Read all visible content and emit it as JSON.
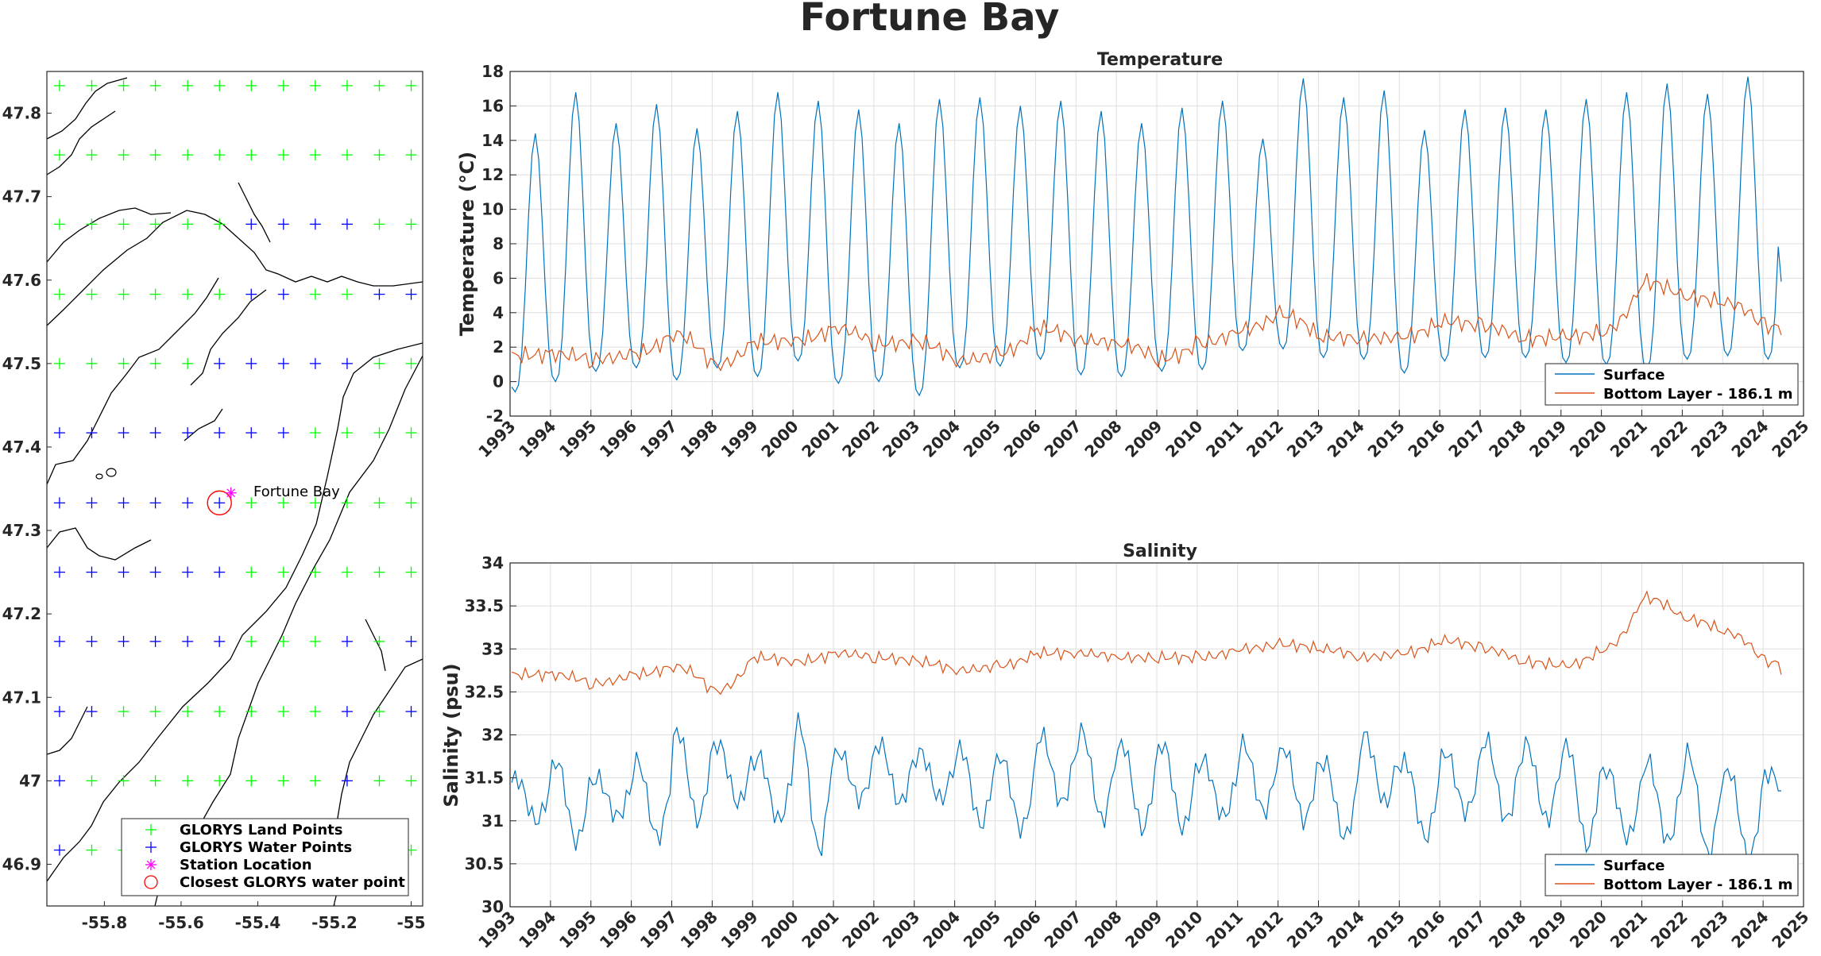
{
  "figure_title": "Fortune Bay",
  "colors": {
    "surface": "#0072BD",
    "bottom": "#D95319",
    "land_points": "#00FF00",
    "water_points": "#0000FF",
    "station": "#FF00FF",
    "closest": "#FF0000",
    "coast": "#000000"
  },
  "map": {
    "station_label": "Fortune Bay",
    "x_ticks": [
      "-55.8",
      "-55.6",
      "-55.4",
      "-55.2",
      "-55"
    ],
    "y_ticks": [
      "47.8",
      "47.7",
      "47.6",
      "47.5",
      "47.4",
      "47.3",
      "47.2",
      "47.1",
      "47",
      "46.9"
    ],
    "legend": [
      "GLORYS Land Points",
      "GLORYS Water Points",
      "Station Location",
      "Closest GLORYS water point"
    ],
    "xlim": [
      -55.95,
      -54.97
    ],
    "ylim": [
      46.85,
      47.85
    ],
    "grid_lon": [
      -55.917,
      -55.833,
      -55.75,
      -55.667,
      -55.583,
      -55.5,
      -55.417,
      -55.333,
      -55.25,
      -55.167,
      -55.083,
      -55.0
    ],
    "grid_lat": [
      47.833,
      47.75,
      47.667,
      47.583,
      47.5,
      47.417,
      47.333,
      47.25,
      47.167,
      47.083,
      47.0,
      46.917
    ],
    "water_mask": [
      "LLLLLLLLLLLL",
      "LLLLLLLLLLLL",
      "LLLLLLWWWWLL",
      "LLLLLLWWLLWW",
      "LLLLLWWWWWLL",
      "WWWWWWWWLLLL",
      "WWWWWWLLLLLL",
      "WWWWWWLLLLLL",
      "WWWWWWLLLWLW",
      "WWLLLLLLLWLW",
      "WLLLLLLLLWLL",
      "WLLLLLLLLLWL"
    ],
    "station": {
      "lon": -55.47,
      "lat": 47.345
    },
    "closest": {
      "lon": -55.5,
      "lat": 47.333
    }
  },
  "chart_data": [
    {
      "type": "line",
      "title": "Temperature",
      "xlabel": "",
      "ylabel": "Temperature (°C)",
      "xlim": [
        1993,
        2025
      ],
      "ylim": [
        -2,
        18
      ],
      "x_ticks": [
        "1993",
        "1994",
        "1995",
        "1996",
        "1997",
        "1998",
        "1999",
        "2000",
        "2001",
        "2002",
        "2003",
        "2004",
        "2005",
        "2006",
        "2007",
        "2008",
        "2009",
        "2010",
        "2011",
        "2012",
        "2013",
        "2014",
        "2015",
        "2016",
        "2017",
        "2018",
        "2019",
        "2020",
        "2021",
        "2022",
        "2023",
        "2024",
        "2025"
      ],
      "y_ticks": [
        "-2",
        "0",
        "2",
        "4",
        "6",
        "8",
        "10",
        "12",
        "14",
        "16",
        "18"
      ],
      "legend": "bottom-right",
      "series": [
        {
          "name": "Surface",
          "peaks": [
            14.4,
            16.8,
            15.0,
            16.1,
            14.7,
            15.7,
            16.8,
            16.3,
            15.8,
            15.0,
            16.4,
            16.5,
            16.0,
            16.3,
            15.7,
            15.0,
            15.9,
            16.3,
            14.1,
            17.6,
            16.5,
            16.9,
            14.6,
            15.8,
            15.9,
            15.8,
            16.4,
            16.8,
            17.3,
            16.7,
            17.7,
            17.8
          ],
          "troughs": [
            -0.6,
            0.0,
            0.6,
            0.8,
            0.1,
            0.8,
            0.3,
            1.2,
            -0.1,
            0.0,
            -0.8,
            0.8,
            0.9,
            1.3,
            0.4,
            0.3,
            0.6,
            0.7,
            1.8,
            1.9,
            1.4,
            1.3,
            0.5,
            1.2,
            1.4,
            1.4,
            1.1,
            1.0,
            0.8,
            1.3,
            1.5,
            1.3
          ],
          "end": 5.8
        },
        {
          "name": "Bottom Layer - 186.1 m",
          "annual_mean": [
            1.5,
            1.6,
            1.3,
            1.6,
            2.8,
            0.9,
            2.3,
            2.4,
            3.1,
            2.2,
            2.3,
            1.2,
            1.6,
            3.1,
            2.4,
            2.2,
            1.3,
            2.2,
            3.0,
            3.9,
            2.6,
            2.5,
            2.6,
            3.5,
            3.2,
            2.5,
            2.6,
            2.9,
            5.8,
            4.9,
            4.6,
            3.2
          ],
          "end": 2.7
        }
      ]
    },
    {
      "type": "line",
      "title": "Salinity",
      "xlabel": "",
      "ylabel": "Salinity (psu)",
      "xlim": [
        1993,
        2025
      ],
      "ylim": [
        30,
        34
      ],
      "x_ticks": [
        "1993",
        "1994",
        "1995",
        "1996",
        "1997",
        "1998",
        "1999",
        "2000",
        "2001",
        "2002",
        "2003",
        "2004",
        "2005",
        "2006",
        "2007",
        "2008",
        "2009",
        "2010",
        "2011",
        "2012",
        "2013",
        "2014",
        "2015",
        "2016",
        "2017",
        "2018",
        "2019",
        "2020",
        "2021",
        "2022",
        "2023",
        "2024",
        "2025"
      ],
      "y_ticks": [
        "30",
        "30.5",
        "31",
        "31.5",
        "32",
        "32.5",
        "33",
        "33.5",
        "34"
      ],
      "legend": "bottom-right",
      "series": [
        {
          "name": "Surface",
          "peaks": [
            31.5,
            31.7,
            31.5,
            31.7,
            32.05,
            31.9,
            31.75,
            32.15,
            31.8,
            31.9,
            31.8,
            31.85,
            31.75,
            32.0,
            32.05,
            31.9,
            31.9,
            31.7,
            31.9,
            31.85,
            31.7,
            32.0,
            31.7,
            31.8,
            31.95,
            31.9,
            31.9,
            31.6,
            31.7,
            31.8,
            31.6,
            31.55
          ],
          "troughs": [
            31.0,
            30.75,
            31.05,
            30.8,
            31.0,
            31.2,
            31.0,
            30.65,
            31.25,
            31.2,
            31.25,
            30.95,
            30.9,
            31.2,
            31.0,
            30.9,
            30.9,
            31.05,
            31.1,
            31.0,
            30.8,
            31.2,
            30.8,
            31.1,
            31.0,
            31.0,
            30.7,
            30.8,
            30.75,
            30.6,
            30.55,
            31.3
          ],
          "end": 31.35
        },
        {
          "name": "Bottom Layer - 186.1 m",
          "annual_mean": [
            32.7,
            32.7,
            32.6,
            32.7,
            32.8,
            32.5,
            32.9,
            32.85,
            32.95,
            32.9,
            32.85,
            32.75,
            32.8,
            32.95,
            32.95,
            32.9,
            32.9,
            32.9,
            33.0,
            33.05,
            33.0,
            32.9,
            32.95,
            33.1,
            33.0,
            32.85,
            32.8,
            33.0,
            33.6,
            33.35,
            33.2,
            32.85
          ],
          "end": 32.7
        }
      ]
    }
  ]
}
